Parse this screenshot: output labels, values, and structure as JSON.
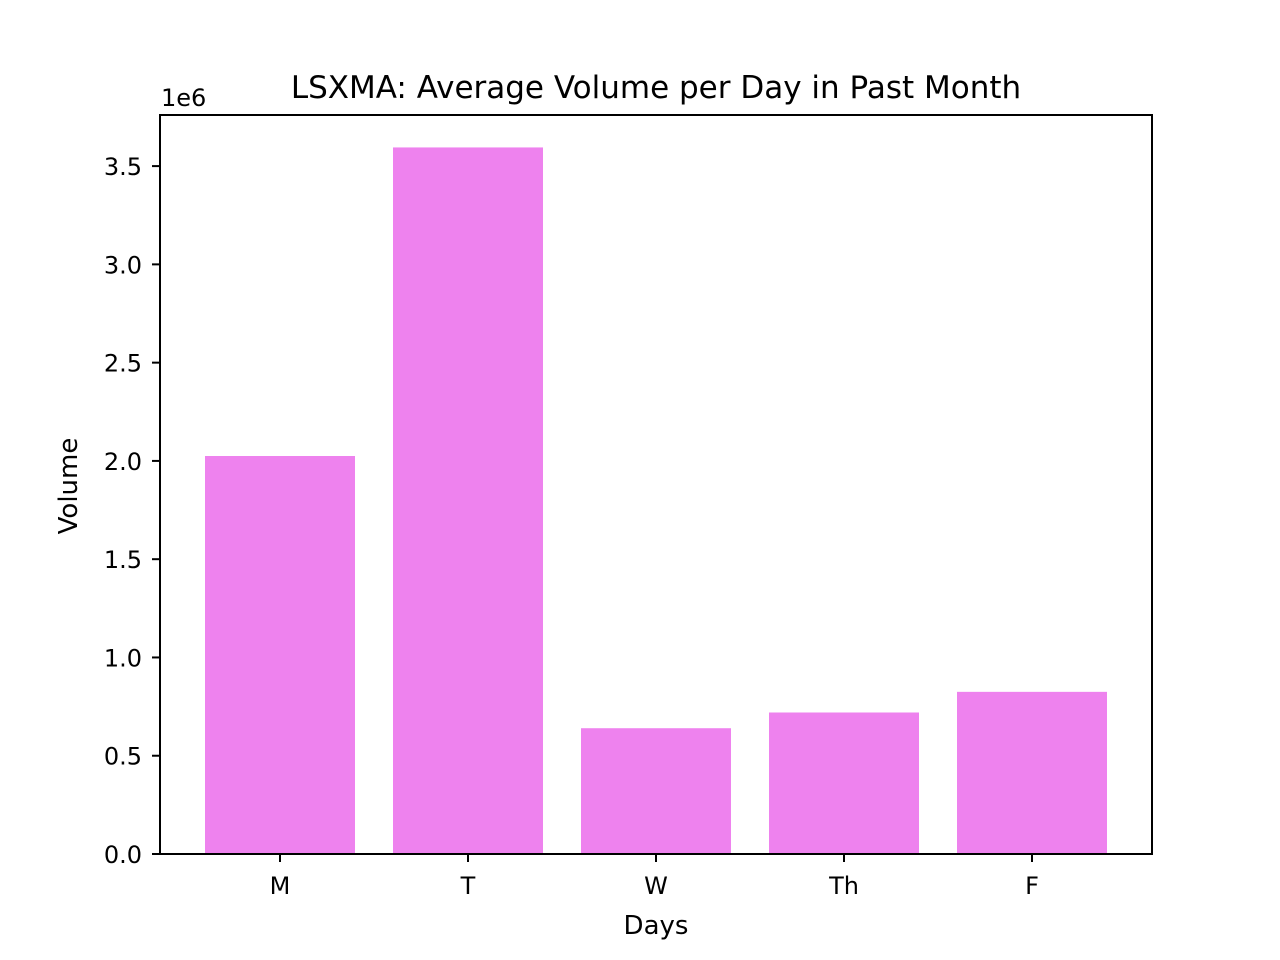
{
  "chart_data": {
    "type": "bar",
    "title": "LSXMA: Average Volume per Day in Past Month",
    "xlabel": "Days",
    "ylabel": "Volume",
    "y_offset_label": "1e6",
    "categories": [
      "M",
      "T",
      "W",
      "Th",
      "F"
    ],
    "values": [
      2025000,
      3595000,
      640000,
      720000,
      825000
    ],
    "ylim": [
      0,
      3760000
    ],
    "yticks": [
      0,
      500000,
      1000000,
      1500000,
      2000000,
      2500000,
      3000000,
      3500000
    ],
    "ytick_labels": [
      "0.0",
      "0.5",
      "1.0",
      "1.5",
      "2.0",
      "2.5",
      "3.0",
      "3.5"
    ],
    "bar_color": "#ee82ee",
    "grid": false,
    "legend": "none"
  }
}
